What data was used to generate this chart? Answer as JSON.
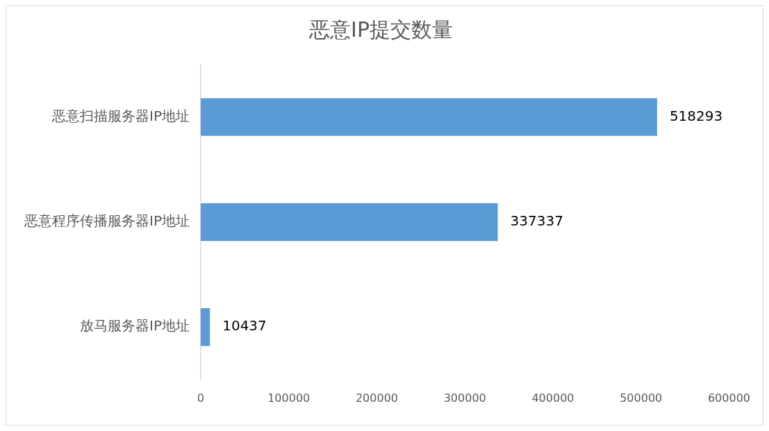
{
  "chart_data": {
    "type": "bar",
    "title": "恶意IP提交数量",
    "orientation": "horizontal",
    "categories": [
      "恶意扫描服务器IP地址",
      "恶意程序传播服务器IP地址",
      "放马服务器IP地址"
    ],
    "values": [
      518293,
      337337,
      10437
    ],
    "color": "#5b9bd5",
    "xlim": [
      0,
      600000
    ],
    "xticks": [
      0,
      100000,
      200000,
      300000,
      400000,
      500000,
      600000
    ],
    "data_labels": true
  }
}
